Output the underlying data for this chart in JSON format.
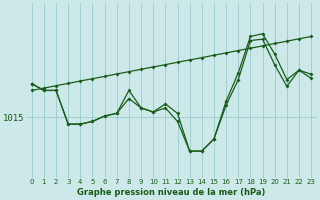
{
  "title": "Graphe pression niveau de la mer (hPa)",
  "background_color": "#cce8e8",
  "plot_bg_color": "#cce8e8",
  "grid_color": "#99cccc",
  "line_color": "#1a5c1a",
  "x_labels": [
    "0",
    "1",
    "2",
    "3",
    "4",
    "5",
    "6",
    "7",
    "8",
    "9",
    "10",
    "11",
    "12",
    "13",
    "14",
    "15",
    "16",
    "17",
    "18",
    "19",
    "20",
    "21",
    "22",
    "23"
  ],
  "ytick_label": "1015",
  "ytick_value": 1015,
  "series1": [
    1017.5,
    1017.0,
    1017.0,
    1014.5,
    1014.5,
    1014.7,
    1015.1,
    1015.3,
    1017.0,
    1015.7,
    1015.4,
    1016.0,
    1015.3,
    1012.5,
    1012.5,
    1013.4,
    1016.2,
    1018.3,
    1021.0,
    1021.2,
    1019.7,
    1017.8,
    1018.5,
    1018.2
  ],
  "series2": [
    1017.5,
    1017.0,
    1017.0,
    1014.5,
    1014.5,
    1014.7,
    1015.1,
    1015.3,
    1016.4,
    1015.7,
    1015.4,
    1015.7,
    1014.7,
    1012.5,
    1012.5,
    1013.4,
    1015.9,
    1017.8,
    1020.7,
    1020.8,
    1018.9,
    1017.3,
    1018.5,
    1017.9
  ],
  "series_linear": [
    1017.0,
    1017.17,
    1017.35,
    1017.52,
    1017.7,
    1017.87,
    1018.04,
    1018.22,
    1018.39,
    1018.57,
    1018.74,
    1018.91,
    1019.09,
    1019.26,
    1019.43,
    1019.61,
    1019.78,
    1019.96,
    1020.13,
    1020.3,
    1020.48,
    1020.65,
    1020.83,
    1021.0
  ],
  "ylim_min": 1010.5,
  "ylim_max": 1023.5
}
